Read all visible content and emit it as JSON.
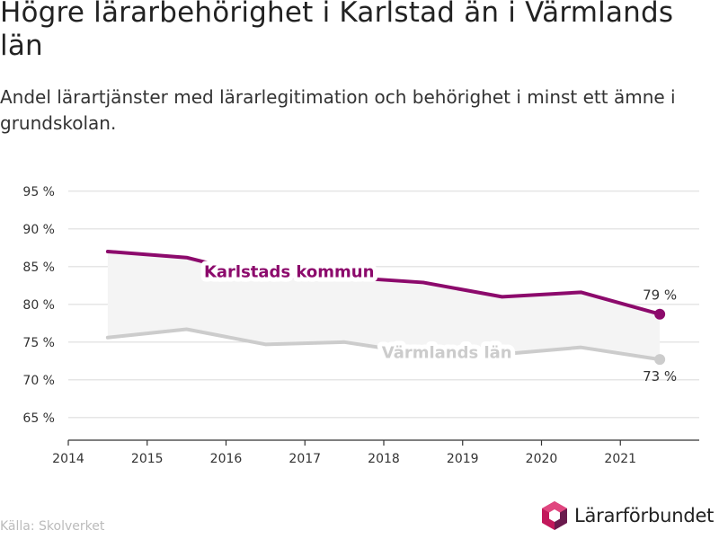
{
  "title": "Högre lärarbehörighet i Karlstad än i Värmlands län",
  "subtitle": "Andel lärartjänster med lärarlegitimation och behörighet i minst ett ämne i grundskolan.",
  "source": "Källa: Skolverket",
  "brand": "Lärarförbundet",
  "colors": {
    "karlstad": "#8c0a6c",
    "varmland": "#cccccc",
    "band": "#f4f4f4",
    "grid": "#dddddd",
    "axis": "#333333",
    "brand_magenta": "#c2185b",
    "brand_dark": "#6a1b4d"
  },
  "chart_data": {
    "type": "line",
    "x": [
      2014.5,
      2015.5,
      2016.5,
      2017.5,
      2018.5,
      2019.5,
      2020.5,
      2021.5
    ],
    "xlim": [
      2014,
      2022
    ],
    "ylim": [
      62,
      97
    ],
    "xticks": [
      "2014",
      "2015",
      "2016",
      "2017",
      "2018",
      "2019",
      "2020",
      "2021"
    ],
    "yticks": [
      "65 %",
      "70 %",
      "75 %",
      "80 %",
      "85 %",
      "90 %",
      "95 %"
    ],
    "ytick_values": [
      65,
      70,
      75,
      80,
      85,
      90,
      95
    ],
    "grid": true,
    "series": [
      {
        "name": "Karlstads kommun",
        "values": [
          87.0,
          86.2,
          83.6,
          83.6,
          82.9,
          81.0,
          81.6,
          78.7
        ],
        "end_label": "79 %"
      },
      {
        "name": "Värmlands län",
        "values": [
          75.6,
          76.7,
          74.7,
          75.0,
          73.4,
          73.4,
          74.3,
          72.7
        ],
        "end_label": "73 %"
      }
    ]
  }
}
